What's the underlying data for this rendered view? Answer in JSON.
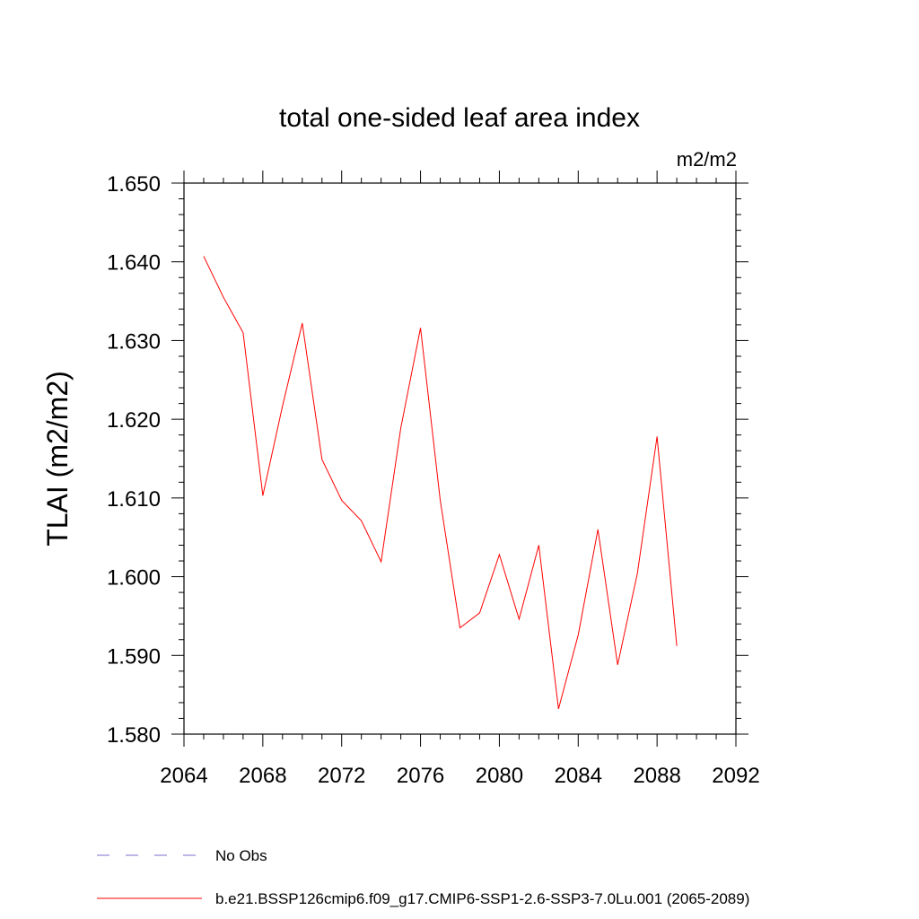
{
  "chart_data": {
    "type": "line",
    "title": "total one-sided leaf area index",
    "units_label": "m2/m2",
    "ylabel": "TLAI  (m2/m2)",
    "xlabel": "",
    "xlim": [
      2064,
      2092
    ],
    "ylim": [
      1.58,
      1.65
    ],
    "x_ticks": [
      2064,
      2068,
      2072,
      2076,
      2080,
      2084,
      2088,
      2092
    ],
    "x_tick_labels": [
      "2064",
      "2068",
      "2072",
      "2076",
      "2080",
      "2084",
      "2088",
      "2092"
    ],
    "y_ticks": [
      1.58,
      1.59,
      1.6,
      1.61,
      1.62,
      1.63,
      1.64,
      1.65
    ],
    "y_tick_labels": [
      "1.580",
      "1.590",
      "1.600",
      "1.610",
      "1.620",
      "1.630",
      "1.640",
      "1.650"
    ],
    "grid": false,
    "legend_position": "bottom-left",
    "series": [
      {
        "name": "b.e21.BSSP126cmip6.f09_g17.CMIP6-SSP1-2.6-SSP3-7.0Lu.001 (2065-2089)",
        "color": "#ff0000",
        "line_style": "solid",
        "x": [
          2065,
          2066,
          2067,
          2068,
          2069,
          2070,
          2071,
          2072,
          2073,
          2074,
          2075,
          2076,
          2077,
          2078,
          2079,
          2080,
          2081,
          2082,
          2083,
          2084,
          2085,
          2086,
          2087,
          2088,
          2089
        ],
        "y": [
          1.6407,
          1.6355,
          1.631,
          1.6103,
          1.6217,
          1.6322,
          1.6149,
          1.6097,
          1.6071,
          1.6019,
          1.6189,
          1.6316,
          1.6097,
          1.5935,
          1.5954,
          1.6028,
          1.5946,
          1.604,
          1.5832,
          1.5926,
          1.606,
          1.5888,
          1.6004,
          1.6178,
          1.5912
        ]
      }
    ],
    "legend": [
      {
        "label": "No Obs",
        "color": "#7b6fd0",
        "line_style": "dashed"
      },
      {
        "label": "b.e21.BSSP126cmip6.f09_g17.CMIP6-SSP1-2.6-SSP3-7.0Lu.001 (2065-2089)",
        "color": "#ff0000",
        "line_style": "solid"
      }
    ]
  }
}
